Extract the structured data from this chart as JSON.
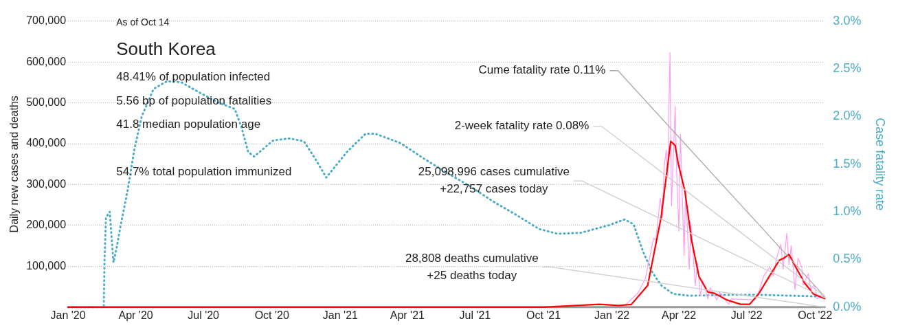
{
  "chart_data": {
    "type": "line",
    "title": "South Korea",
    "subtitle": "As of Oct 14",
    "ylabel": "Daily new cases and deaths",
    "y2label": "Case fatality rate",
    "annotations": [
      "48.41% of population infected",
      "5.56 bp of population fatalities",
      "41.8 median population age",
      "54.7% total population immunized",
      {
        "text": "Cume fatality rate 0.11%",
        "x": "2022-10-14",
        "y": 26000
      },
      {
        "text": "2-week fatality rate 0.08%",
        "x": "2022-10-14",
        "y": 26000
      },
      {
        "text": "25,098,996 cases cumulative\n+22,757 cases today",
        "x": "2022-10-14",
        "y": 22757
      },
      {
        "text": "28,808 deaths cumulative\n+25 deaths today",
        "x": "2022-10-14",
        "y": 0
      }
    ],
    "xlim": [
      "2020-01-01",
      "2022-10-14"
    ],
    "xticks": [
      {
        "value": "2020-01-01",
        "label": "Jan '20"
      },
      {
        "value": "2020-04-01",
        "label": "Apr '20"
      },
      {
        "value": "2020-07-01",
        "label": "Jul '20"
      },
      {
        "value": "2020-10-01",
        "label": "Oct '20"
      },
      {
        "value": "2021-01-01",
        "label": "Jan '21"
      },
      {
        "value": "2021-04-01",
        "label": "Apr '21"
      },
      {
        "value": "2021-07-01",
        "label": "Jul '21"
      },
      {
        "value": "2021-10-01",
        "label": "Oct '21"
      },
      {
        "value": "2022-01-01",
        "label": "Jan '22"
      },
      {
        "value": "2022-04-01",
        "label": "Apr '22"
      },
      {
        "value": "2022-07-01",
        "label": "Jul '22"
      },
      {
        "value": "2022-10-01",
        "label": "Oct '22"
      }
    ],
    "ylim": [
      0,
      700000
    ],
    "yticks": [
      {
        "value": 100000,
        "label": "100,000"
      },
      {
        "value": 200000,
        "label": "200,000"
      },
      {
        "value": 300000,
        "label": "300,000"
      },
      {
        "value": 400000,
        "label": "400,000"
      },
      {
        "value": 500000,
        "label": "500,000"
      },
      {
        "value": 600000,
        "label": "600,000"
      },
      {
        "value": 700000,
        "label": "700,000"
      }
    ],
    "y2lim": [
      0,
      3
    ],
    "y2ticks": [
      {
        "value": 0,
        "label": "0.0%"
      },
      {
        "value": 0.5,
        "label": "0.5%"
      },
      {
        "value": 1,
        "label": "1.0%"
      },
      {
        "value": 1.5,
        "label": "1.5%"
      },
      {
        "value": 2,
        "label": "2.0%"
      },
      {
        "value": 2.5,
        "label": "2.5%"
      },
      {
        "value": 3,
        "label": "3.0%"
      }
    ],
    "grid": "y",
    "marker": "none",
    "legend": false,
    "series": [
      {
        "color": "#ff9cf0",
        "line_style": "solid",
        "x": [
          "2022-01-20",
          "2022-02-05",
          "2022-02-15",
          "2022-02-26",
          "2022-03-01",
          "2022-03-07",
          "2022-03-10",
          "2022-03-12",
          "2022-03-15",
          "2022-03-17",
          "2022-03-20",
          "2022-03-22",
          "2022-03-27",
          "2022-03-29",
          "2022-04-01",
          "2022-04-03",
          "2022-04-08",
          "2022-04-10",
          "2022-04-15",
          "2022-04-17",
          "2022-04-23",
          "2022-04-26",
          "2022-04-30",
          "2022-05-03",
          "2022-05-10",
          "2022-05-13",
          "2022-05-22",
          "2022-05-26",
          "2022-06-07",
          "2022-06-10",
          "2022-07-12",
          "2022-07-18",
          "2022-07-24",
          "2022-08-01",
          "2022-08-06",
          "2022-08-10",
          "2022-08-16",
          "2022-08-19",
          "2022-08-24",
          "2022-08-27",
          "2022-08-30",
          "2022-09-04",
          "2022-09-08",
          "2022-09-13",
          "2022-09-15",
          "2022-09-22",
          "2022-09-25",
          "2022-09-30",
          "2022-10-04",
          "2022-10-11",
          "2022-10-14"
        ],
        "values": [
          7000,
          35000,
          70000,
          169000,
          164000,
          267000,
          220000,
          342000,
          385000,
          318000,
          623000,
          247000,
          491000,
          330000,
          186000,
          424000,
          126000,
          285000,
          93000,
          209000,
          53000,
          109000,
          27000,
          65000,
          20000,
          48000,
          18000,
          37000,
          7000,
          20000,
          18000,
          41000,
          76000,
          98000,
          76000,
          118000,
          154000,
          93000,
          181000,
          104000,
          151000,
          43000,
          120000,
          98000,
          54000,
          82000,
          43000,
          54000,
          20000,
          32000,
          22757
        ]
      },
      {
        "color": "#ff0000",
        "line_style": "solid",
        "x": [
          "2020-01-01",
          "2021-10-01",
          "2021-12-15",
          "2022-01-10",
          "2022-01-27",
          "2022-02-18",
          "2022-02-27",
          "2022-03-08",
          "2022-03-21",
          "2022-03-27",
          "2022-03-31",
          "2022-04-09",
          "2022-04-18",
          "2022-04-28",
          "2022-05-10",
          "2022-05-19",
          "2022-06-04",
          "2022-06-23",
          "2022-07-05",
          "2022-07-17",
          "2022-07-30",
          "2022-08-14",
          "2022-08-20",
          "2022-08-27",
          "2022-09-05",
          "2022-09-17",
          "2022-09-29",
          "2022-10-14"
        ],
        "values": [
          0,
          0,
          7000,
          4000,
          6600,
          53000,
          136000,
          219000,
          406000,
          396000,
          352000,
          285000,
          164000,
          75000,
          37000,
          34000,
          18000,
          7000,
          7000,
          32000,
          71000,
          115000,
          120000,
          129000,
          98000,
          59000,
          32000,
          21000
        ]
      },
      {
        "color": "#999999",
        "line_style": "solid",
        "x": [
          "2020-01-01",
          "2022-10-14"
        ],
        "values": [
          0,
          0
        ]
      },
      {
        "color": "#4bacc6",
        "line_style": "dotted",
        "axis": "y2",
        "x": [
          "2020-01-01",
          "2020-02-18",
          "2020-02-19",
          "2020-02-21",
          "2020-02-26",
          "2020-03-02",
          "2020-03-06",
          "2020-03-12",
          "2020-03-21",
          "2020-03-30",
          "2020-04-09",
          "2020-04-25",
          "2020-05-13",
          "2020-06-01",
          "2020-06-26",
          "2020-07-20",
          "2020-08-12",
          "2020-08-21",
          "2020-08-30",
          "2020-09-07",
          "2020-10-03",
          "2020-10-25",
          "2020-11-13",
          "2020-11-28",
          "2020-12-13",
          "2021-01-10",
          "2021-02-04",
          "2021-02-17",
          "2021-03-23",
          "2021-04-23",
          "2021-05-24",
          "2021-06-24",
          "2021-07-25",
          "2021-08-25",
          "2021-09-25",
          "2021-10-20",
          "2021-11-20",
          "2021-12-28",
          "2022-01-18",
          "2022-01-30",
          "2022-02-12",
          "2022-02-24",
          "2022-03-08",
          "2022-03-24",
          "2022-04-15",
          "2022-06-16",
          "2022-07-17",
          "2022-09-01",
          "2022-10-14"
        ],
        "values": [
          0,
          0,
          0.47,
          0.94,
          1.0,
          0.47,
          0.61,
          0.87,
          1.22,
          1.65,
          2.0,
          2.29,
          2.37,
          2.36,
          2.25,
          2.15,
          2.08,
          1.89,
          1.63,
          1.58,
          1.75,
          1.77,
          1.74,
          1.56,
          1.36,
          1.63,
          1.82,
          1.82,
          1.72,
          1.56,
          1.41,
          1.27,
          1.11,
          0.97,
          0.82,
          0.77,
          0.78,
          0.86,
          0.92,
          0.87,
          0.58,
          0.37,
          0.23,
          0.14,
          0.12,
          0.13,
          0.13,
          0.12,
          0.11
        ]
      }
    ]
  }
}
